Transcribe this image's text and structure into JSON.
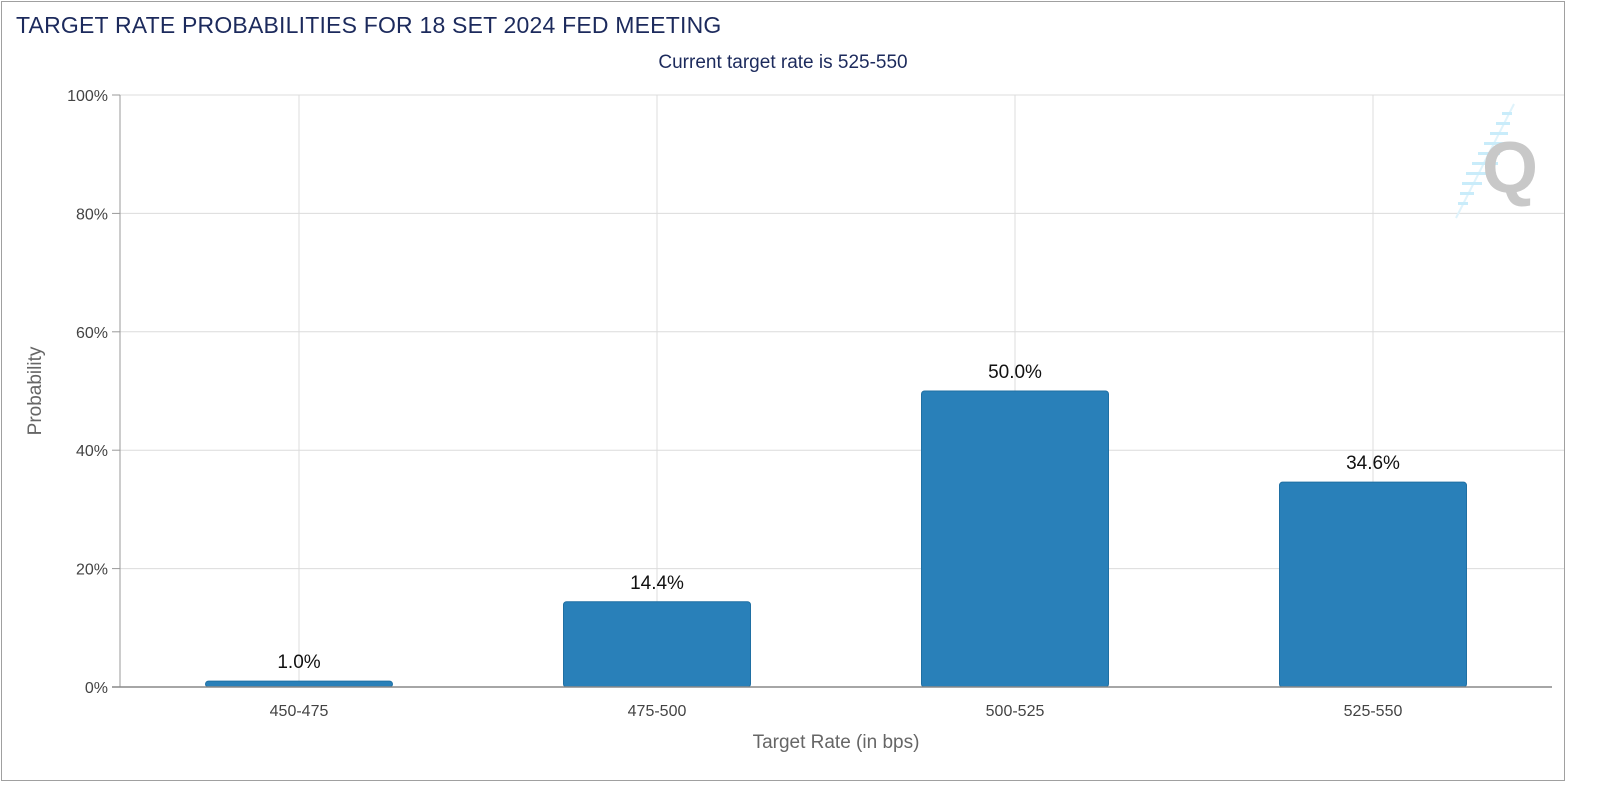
{
  "chart_data": {
    "type": "bar",
    "title": "TARGET RATE PROBABILITIES FOR 18 SET 2024 FED MEETING",
    "subtitle": "Current target rate is 525-550",
    "xlabel": "Target Rate (in bps)",
    "ylabel": "Probability",
    "categories": [
      "450-475",
      "475-500",
      "500-525",
      "525-550"
    ],
    "values": [
      1.0,
      14.4,
      50.0,
      34.6
    ],
    "data_labels": [
      "1.0%",
      "14.4%",
      "50.0%",
      "34.6%"
    ],
    "ylim": [
      0,
      100
    ],
    "yticks": [
      0,
      20,
      40,
      60,
      80,
      100
    ],
    "ytick_labels": [
      "0%",
      "20%",
      "40%",
      "60%",
      "80%",
      "100%"
    ],
    "grid": true,
    "legend": "none",
    "bar_color": "#2980b9",
    "grid_color": "#dcdcdc",
    "title_color": "#1c2a5c"
  },
  "watermark": {
    "icon": "quikstrike-q-logo-icon",
    "text": "Q"
  }
}
